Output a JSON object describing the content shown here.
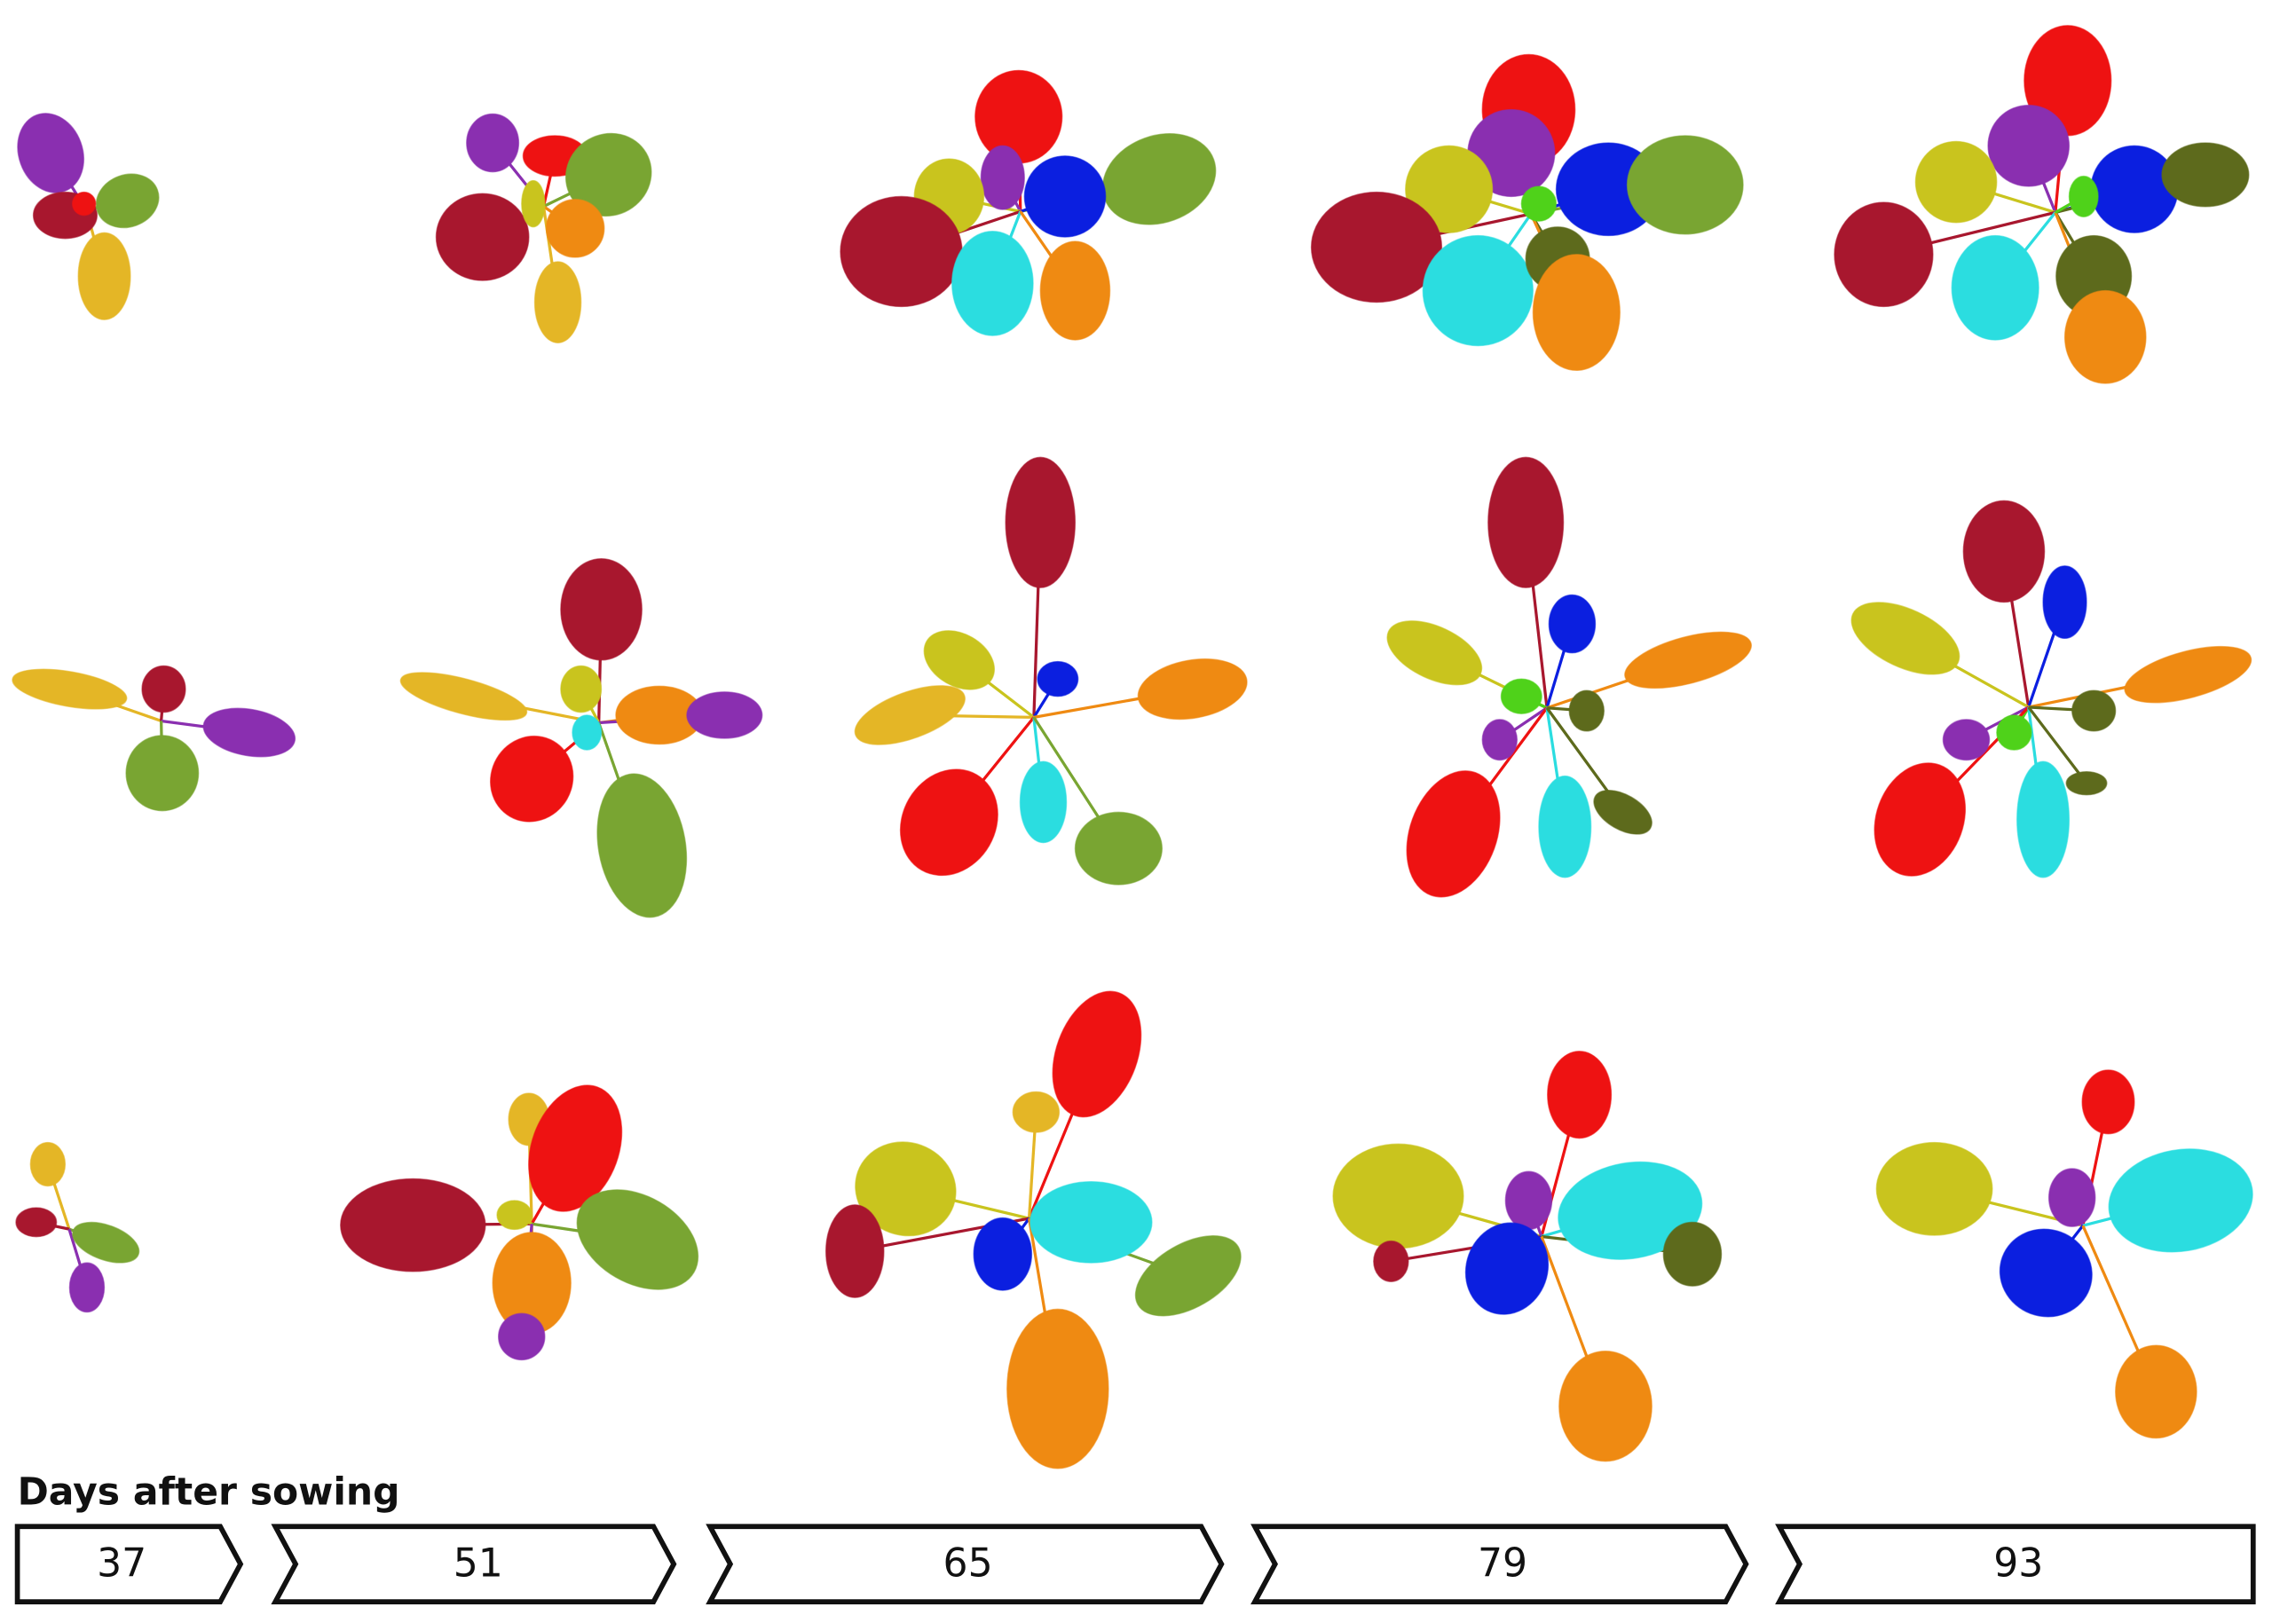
{
  "timeline": {
    "label": "Days after sowing",
    "days": [
      "37",
      "51",
      "65",
      "79",
      "93"
    ]
  },
  "colors": {
    "red": "#ee1212",
    "crimson": "#a8172e",
    "purple": "#8a2fb0",
    "green": "#79a532",
    "gold": "#e4b626",
    "yellow": "#c9c41e",
    "orange": "#ef8a12",
    "cyan": "#2bdde0",
    "blue": "#0b1fe0",
    "olive": "#5d6a1c",
    "lime": "#4fd21a"
  }
}
